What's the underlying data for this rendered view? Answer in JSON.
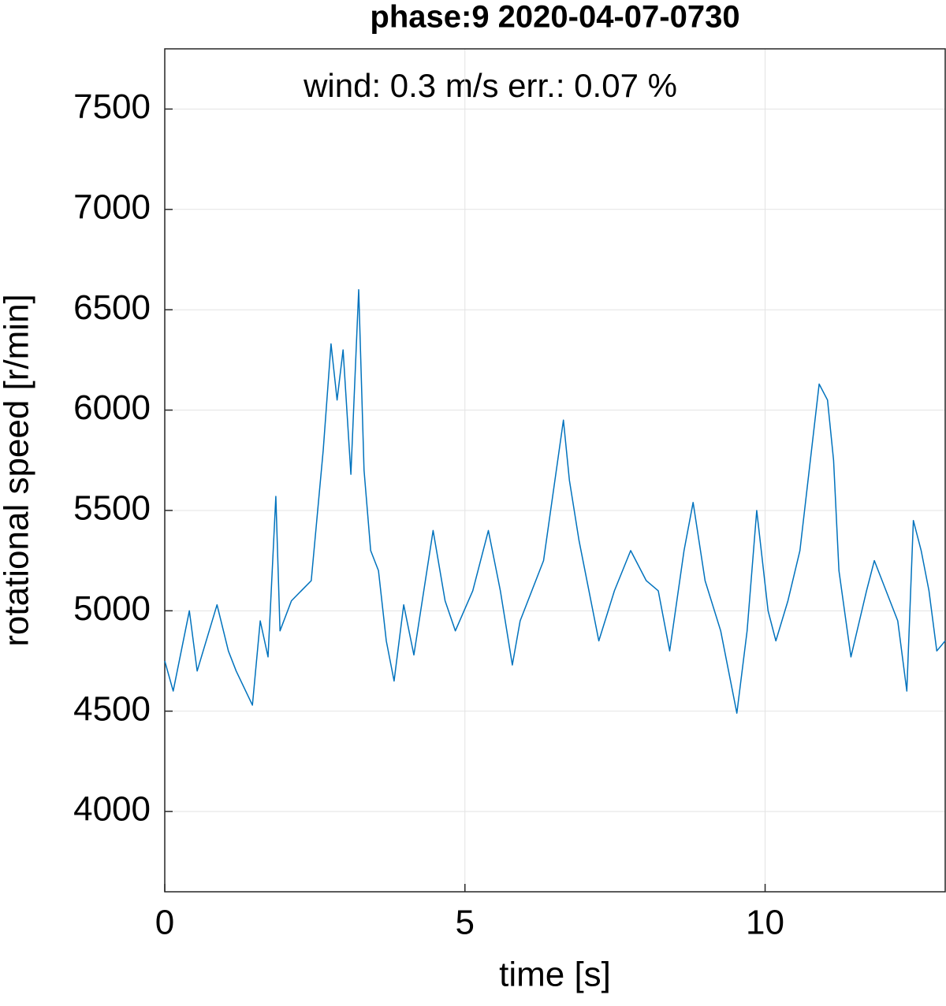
{
  "chart_data": {
    "type": "line",
    "title": "phase:9 2020-04-07-0730",
    "annotation": "wind: 0.3 m/s   err.: 0.07 %",
    "x_label": "time [s]",
    "y_label": "rotational speed [r/min]",
    "color": "#0072bd",
    "grid": true,
    "xlim": [
      0,
      13
    ],
    "ylim": [
      3600,
      7800
    ],
    "xticks": [
      0,
      5,
      10
    ],
    "yticks": [
      4000,
      4500,
      5000,
      5500,
      6000,
      6500,
      7000,
      7500
    ],
    "x": [
      0,
      0.14,
      0.41,
      0.54,
      0.87,
      1.06,
      1.19,
      1.46,
      1.59,
      1.72,
      1.85,
      1.92,
      2.11,
      2.44,
      2.64,
      2.77,
      2.87,
      2.97,
      3.1,
      3.23,
      3.32,
      3.43,
      3.56,
      3.69,
      3.82,
      3.98,
      4.15,
      4.47,
      4.67,
      4.84,
      5.13,
      5.39,
      5.59,
      5.79,
      5.92,
      6.31,
      6.64,
      6.74,
      6.9,
      7.23,
      7.49,
      7.76,
      8.02,
      8.22,
      8.41,
      8.65,
      8.8,
      9.0,
      9.26,
      9.53,
      9.7,
      9.86,
      10.05,
      10.18,
      10.38,
      10.58,
      10.9,
      11.04,
      11.14,
      11.23,
      11.43,
      11.69,
      11.82,
      12.08,
      12.21,
      12.36,
      12.47,
      12.6,
      12.73,
      12.86,
      13.0
    ],
    "values": [
      4750,
      4600,
      5000,
      4700,
      5030,
      4800,
      4700,
      4530,
      4950,
      4770,
      5570,
      4900,
      5050,
      5150,
      5800,
      6330,
      6050,
      6300,
      5680,
      6600,
      5700,
      5300,
      5200,
      4850,
      4650,
      5030,
      4780,
      5400,
      5050,
      4900,
      5100,
      5400,
      5100,
      4730,
      4950,
      5250,
      5950,
      5650,
      5350,
      4850,
      5100,
      5300,
      5150,
      5100,
      4800,
      5300,
      5540,
      5150,
      4900,
      4490,
      4900,
      5500,
      5000,
      4850,
      5050,
      5300,
      6130,
      6050,
      5750,
      5200,
      4770,
      5100,
      5250,
      5050,
      4950,
      4600,
      5450,
      5300,
      5100,
      4800,
      4850
    ]
  }
}
